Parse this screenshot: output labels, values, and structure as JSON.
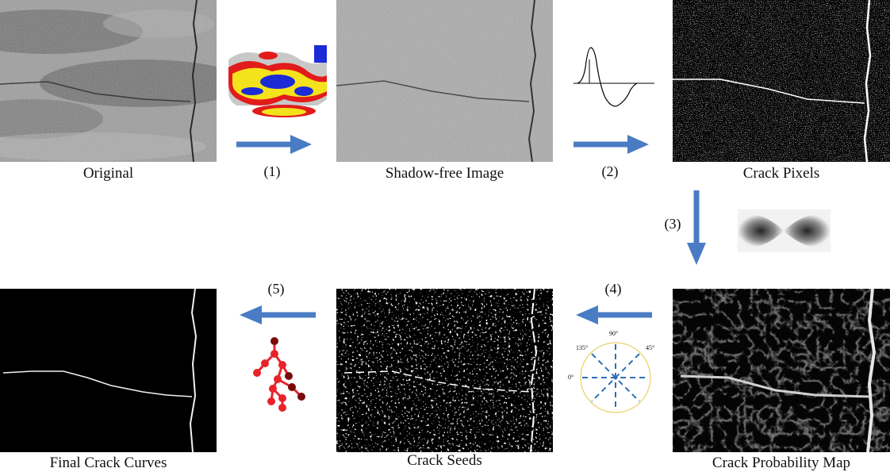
{
  "captions": {
    "original": "Original",
    "shadow_free": "Shadow-free Image",
    "crack_pixels": "Crack Pixels",
    "probability_map": "Crack Probability Map",
    "seeds": "Crack Seeds",
    "final": "Final Crack Curves"
  },
  "steps": {
    "s1": "(1)",
    "s2": "(2)",
    "s3": "(3)",
    "s4": "(4)",
    "s5": "(5)"
  },
  "orientation_labels": {
    "deg0": "0°",
    "deg45": "45°",
    "deg90": "90°",
    "deg135": "135°"
  },
  "colors": {
    "arrow": "#4a7cc4",
    "tree_node": "#e8232a",
    "tree_node_dark": "#7a0a0a",
    "dial_dash": "#2f6db8",
    "dial_circle": "#e3c84a"
  }
}
